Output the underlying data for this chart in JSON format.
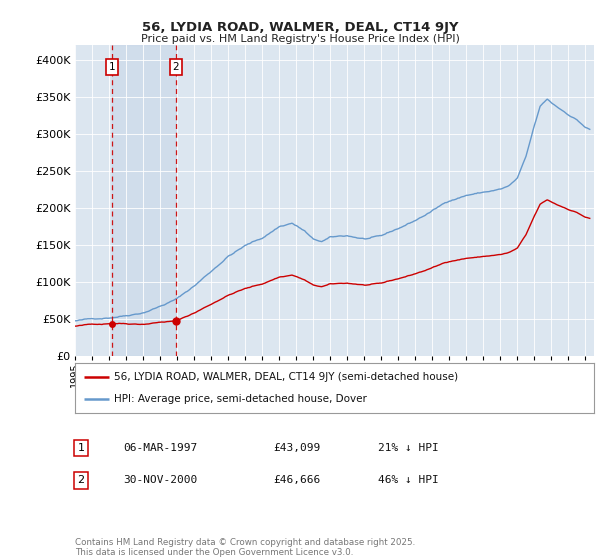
{
  "title1": "56, LYDIA ROAD, WALMER, DEAL, CT14 9JY",
  "title2": "Price paid vs. HM Land Registry's House Price Index (HPI)",
  "ylabel_ticks": [
    "£0",
    "£50K",
    "£100K",
    "£150K",
    "£200K",
    "£250K",
    "£300K",
    "£350K",
    "£400K"
  ],
  "ylabel_values": [
    0,
    50000,
    100000,
    150000,
    200000,
    250000,
    300000,
    350000,
    400000
  ],
  "ylim": [
    0,
    420000
  ],
  "sale1_x": 1997.17,
  "sale1_price": 43099,
  "sale2_x": 2000.92,
  "sale2_price": 46666,
  "line_color_property": "#cc0000",
  "line_color_hpi": "#6699cc",
  "vline_color": "#cc0000",
  "bg_color": "#dce6f0",
  "span_color": "#c5d5e8",
  "legend_label1": "56, LYDIA ROAD, WALMER, DEAL, CT14 9JY (semi-detached house)",
  "legend_label2": "HPI: Average price, semi-detached house, Dover",
  "table_row1": [
    "1",
    "06-MAR-1997",
    "£43,099",
    "21% ↓ HPI"
  ],
  "table_row2": [
    "2",
    "30-NOV-2000",
    "£46,666",
    "46% ↓ HPI"
  ],
  "footer": "Contains HM Land Registry data © Crown copyright and database right 2025.\nThis data is licensed under the Open Government Licence v3.0."
}
